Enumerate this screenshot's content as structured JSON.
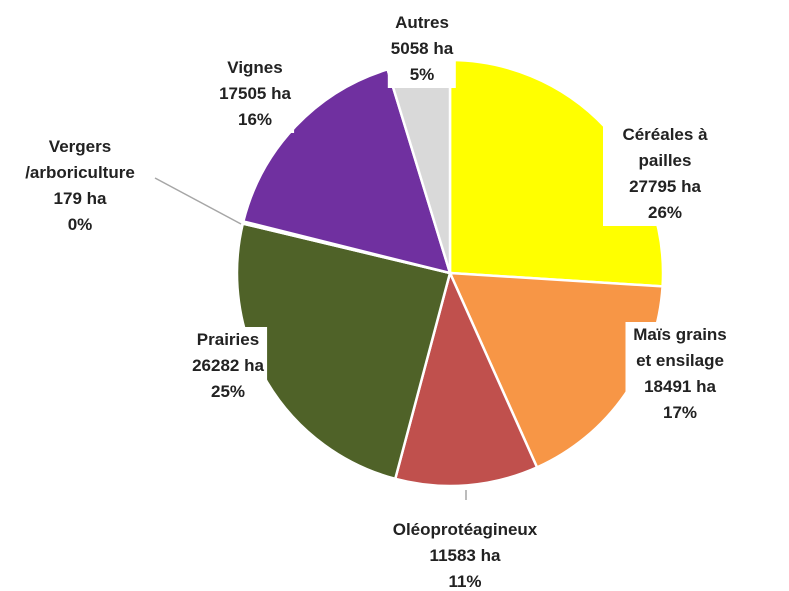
{
  "chart_data": {
    "type": "pie",
    "categories": [
      "Céréales à pailles",
      "Maïs grains et ensilage",
      "Oléoprotéagineux",
      "Prairies",
      "Vergers\n/arboriculture",
      "Vignes",
      "Autres"
    ],
    "values": [
      27795,
      18491,
      11583,
      26282,
      179,
      17505,
      5058
    ],
    "value_labels": [
      "27795 ha",
      "18491 ha",
      "11583 ha",
      "26282 ha",
      "179 ha",
      "17505 ha",
      "5058 ha"
    ],
    "percent_labels": [
      "26%",
      "17%",
      "11%",
      "25%",
      "0%",
      "16%",
      "5%"
    ],
    "colors": [
      "#ffff00",
      "#f79646",
      "#c0504d",
      "#4f6228",
      "#4bacc6",
      "#7030a0",
      "#d9d9d9"
    ]
  }
}
